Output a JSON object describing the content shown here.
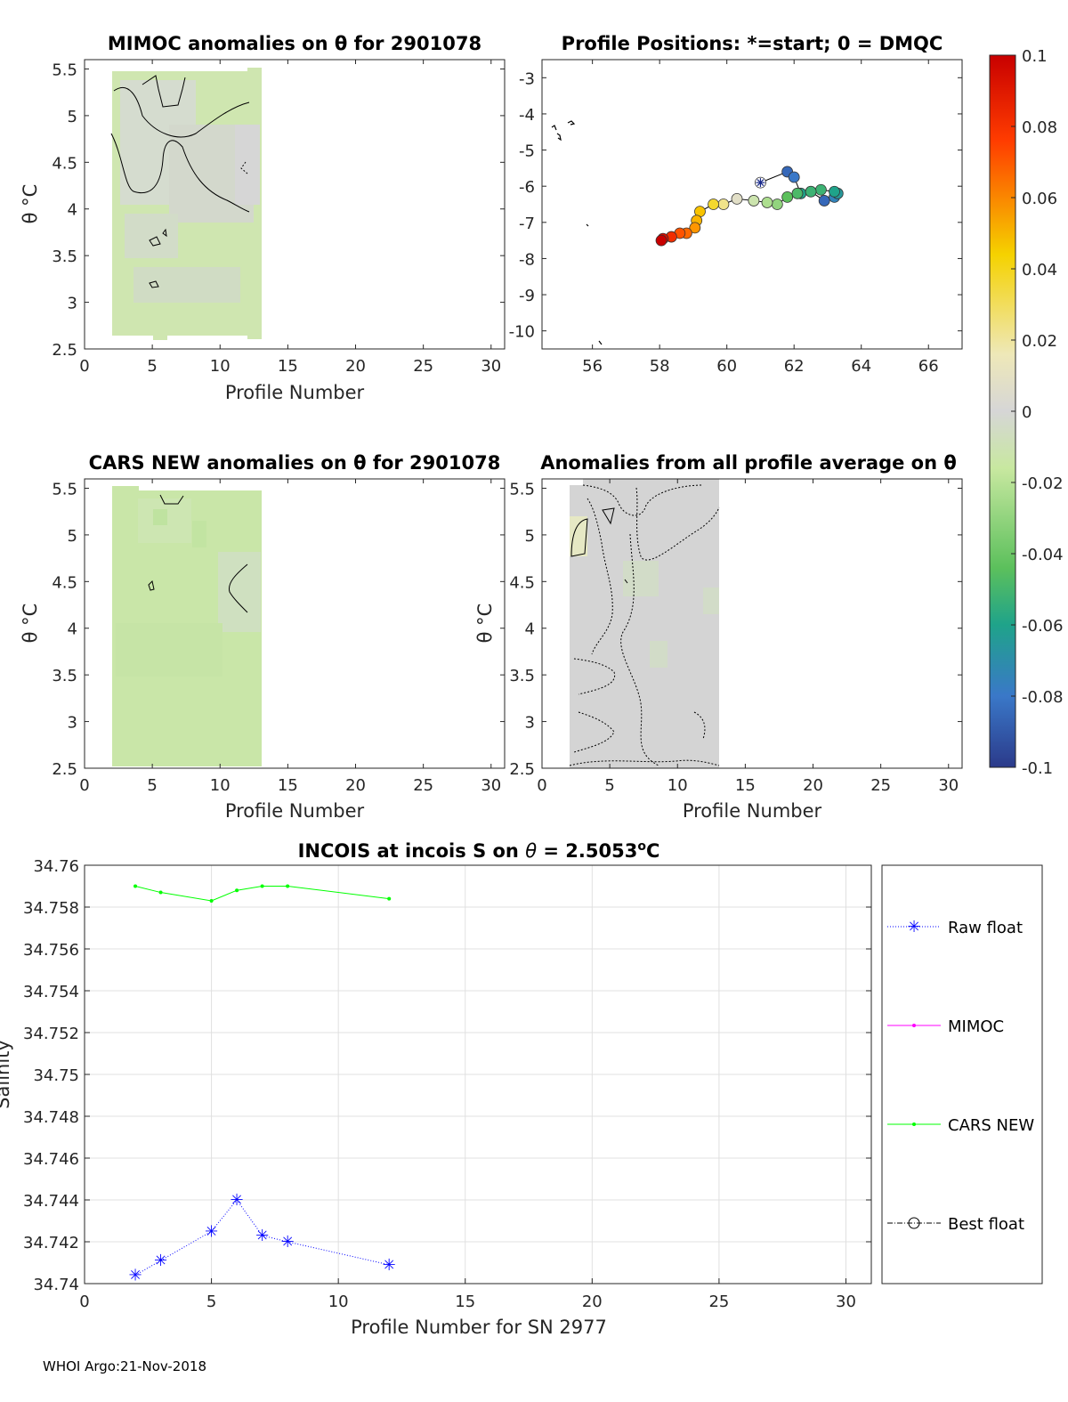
{
  "footer": "WHOI Argo:21-Nov-2018",
  "chart_data": [
    {
      "id": "mimoc",
      "type": "heatmap",
      "title": "MIMOC anomalies on θ  for 2901078",
      "xlabel": "Profile Number",
      "ylabel": "θ °C",
      "xlim": [
        0,
        31
      ],
      "ylim": [
        2.5,
        5.6
      ],
      "xticks": [
        "0",
        "5",
        "10",
        "15",
        "20",
        "25",
        "30"
      ],
      "yticks": [
        "2.5",
        "3",
        "3.5",
        "4",
        "4.5",
        "5",
        "5.5"
      ],
      "profile_range": [
        2,
        13
      ],
      "anomaly_range": [
        -0.02,
        0.0
      ]
    },
    {
      "id": "positions",
      "type": "scatter",
      "title": "Profile Positions: *=start; 0 = DMQC",
      "xlim": [
        54.5,
        67
      ],
      "ylim": [
        -10.5,
        -2.5
      ],
      "xticks": [
        "56",
        "58",
        "60",
        "62",
        "64",
        "66"
      ],
      "yticks": [
        "-3",
        "-4",
        "-5",
        "-6",
        "-7",
        "-8",
        "-9",
        "-10"
      ],
      "start": {
        "lon": 61.0,
        "lat": -5.9
      },
      "track": [
        {
          "lon": 61.0,
          "lat": -5.9,
          "c": -0.07
        },
        {
          "lon": 61.8,
          "lat": -5.6,
          "c": -0.085
        },
        {
          "lon": 62.0,
          "lat": -5.75,
          "c": -0.08
        },
        {
          "lon": 62.2,
          "lat": -6.2,
          "c": -0.06
        },
        {
          "lon": 62.5,
          "lat": -6.15,
          "c": -0.055
        },
        {
          "lon": 62.9,
          "lat": -6.4,
          "c": -0.085
        },
        {
          "lon": 63.2,
          "lat": -6.3,
          "c": -0.075
        },
        {
          "lon": 63.3,
          "lat": -6.2,
          "c": -0.065
        },
        {
          "lon": 63.2,
          "lat": -6.15,
          "c": -0.06
        },
        {
          "lon": 62.8,
          "lat": -6.1,
          "c": -0.05
        },
        {
          "lon": 62.5,
          "lat": -6.15,
          "c": -0.05
        },
        {
          "lon": 62.1,
          "lat": -6.2,
          "c": -0.045
        },
        {
          "lon": 61.8,
          "lat": -6.3,
          "c": -0.04
        },
        {
          "lon": 61.5,
          "lat": -6.5,
          "c": -0.03
        },
        {
          "lon": 61.2,
          "lat": -6.45,
          "c": -0.025
        },
        {
          "lon": 60.8,
          "lat": -6.4,
          "c": -0.015
        },
        {
          "lon": 60.3,
          "lat": -6.35,
          "c": 0.01
        },
        {
          "lon": 59.9,
          "lat": -6.5,
          "c": 0.025
        },
        {
          "lon": 59.6,
          "lat": -6.5,
          "c": 0.035
        },
        {
          "lon": 59.2,
          "lat": -6.7,
          "c": 0.045
        },
        {
          "lon": 59.1,
          "lat": -6.95,
          "c": 0.05
        },
        {
          "lon": 59.05,
          "lat": -7.15,
          "c": 0.06
        },
        {
          "lon": 58.8,
          "lat": -7.3,
          "c": 0.07
        },
        {
          "lon": 58.6,
          "lat": -7.3,
          "c": 0.075
        },
        {
          "lon": 58.35,
          "lat": -7.4,
          "c": 0.085
        },
        {
          "lon": 58.1,
          "lat": -7.45,
          "c": 0.095
        },
        {
          "lon": 58.05,
          "lat": -7.5,
          "c": 0.1
        }
      ]
    },
    {
      "id": "colorbar",
      "type": "colorbar",
      "ticks": [
        "0.1",
        "0.08",
        "0.06",
        "0.04",
        "0.02",
        "0",
        "-0.02",
        "-0.04",
        "-0.06",
        "-0.08",
        "-0.1"
      ],
      "range": [
        -0.1,
        0.1
      ]
    },
    {
      "id": "cars",
      "type": "heatmap",
      "title": "CARS NEW anomalies on θ for 2901078",
      "xlabel": "Profile Number",
      "ylabel": "θ °C",
      "xlim": [
        0,
        31
      ],
      "ylim": [
        2.5,
        5.6
      ],
      "xticks": [
        "0",
        "5",
        "10",
        "15",
        "20",
        "25",
        "30"
      ],
      "yticks": [
        "2.5",
        "3",
        "3.5",
        "4",
        "4.5",
        "5",
        "5.5"
      ],
      "profile_range": [
        2,
        13
      ],
      "anomaly_range": [
        -0.02,
        -0.01
      ]
    },
    {
      "id": "allavg",
      "type": "heatmap",
      "title": "Anomalies from all profile average on θ",
      "xlabel": "Profile Number",
      "ylabel": "θ °C",
      "xlim": [
        0,
        31
      ],
      "ylim": [
        2.5,
        5.6
      ],
      "xticks": [
        "0",
        "5",
        "10",
        "15",
        "20",
        "25",
        "30"
      ],
      "yticks": [
        "2.5",
        "3",
        "3.5",
        "4",
        "4.5",
        "5",
        "5.5"
      ],
      "profile_range": [
        2,
        13
      ],
      "anomaly_range": [
        0.0,
        0.01
      ]
    },
    {
      "id": "salinity",
      "type": "line",
      "title_parts": [
        "INCOIS at incois S on ",
        "θ",
        " = 2.5053",
        "o",
        "C"
      ],
      "xlabel": "Profile Number for SN 2977",
      "ylabel": "Salinity",
      "xlim": [
        0,
        31
      ],
      "ylim": [
        34.74,
        34.76
      ],
      "xticks": [
        "0",
        "5",
        "10",
        "15",
        "20",
        "25",
        "30"
      ],
      "yticks": [
        "34.74",
        "34.742",
        "34.744",
        "34.746",
        "34.748",
        "34.75",
        "34.752",
        "34.754",
        "34.756",
        "34.758",
        "34.76"
      ],
      "series": [
        {
          "name": "Raw float",
          "color": "#0000ff",
          "x": [
            2,
            3,
            5,
            6,
            7,
            8,
            12
          ],
          "y": [
            34.7404,
            34.7411,
            34.7425,
            34.744,
            34.7423,
            34.742,
            34.7409
          ]
        },
        {
          "name": "MIMOC",
          "color": "#ff00ff",
          "x": [],
          "y": []
        },
        {
          "name": "CARS NEW",
          "color": "#00ff00",
          "x": [
            2,
            3,
            5,
            6,
            7,
            8,
            12
          ],
          "y": [
            34.759,
            34.7587,
            34.7583,
            34.7588,
            34.759,
            34.759,
            34.7584
          ]
        },
        {
          "name": "Best float",
          "color": "#000000",
          "x": [],
          "y": []
        }
      ]
    }
  ]
}
